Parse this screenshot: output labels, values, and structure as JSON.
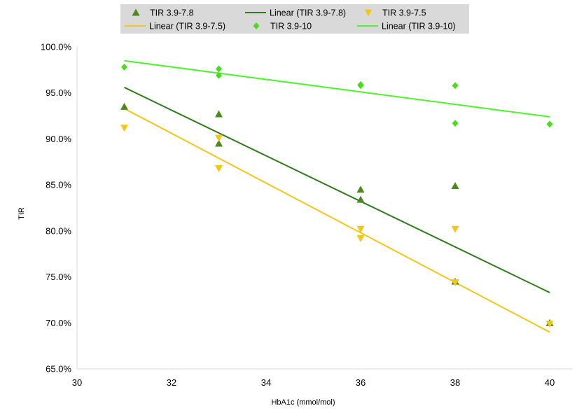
{
  "chart_data": {
    "type": "scatter",
    "title": "",
    "xlabel": "HbA1c (mmol/mol)",
    "ylabel": "TIR",
    "xlim": [
      30,
      40
    ],
    "ylim": [
      65,
      100
    ],
    "x_ticks": [
      30,
      32,
      34,
      36,
      38,
      40
    ],
    "y_ticks": [
      65,
      70,
      75,
      80,
      85,
      90,
      95,
      100
    ],
    "y_tick_labels": [
      "65.0%",
      "70.0%",
      "75.0%",
      "80.0%",
      "85.0%",
      "90.0%",
      "95.0%",
      "100.0%"
    ],
    "grid": false,
    "legend_position": "top",
    "series": [
      {
        "name": "TIR 3.9-7.8",
        "marker": "triangle-up",
        "color": "#4a8a1e",
        "points": [
          [
            31,
            93.5
          ],
          [
            33,
            92.7
          ],
          [
            33,
            89.5
          ],
          [
            36,
            84.5
          ],
          [
            36,
            83.4
          ],
          [
            38,
            84.9
          ],
          [
            38,
            74.5
          ],
          [
            40,
            70.0
          ]
        ]
      },
      {
        "name": "TIR 3.9-7.5",
        "marker": "triangle-down",
        "color": "#f5c518",
        "points": [
          [
            31,
            91.2
          ],
          [
            33,
            90.1
          ],
          [
            33,
            86.8
          ],
          [
            36,
            80.2
          ],
          [
            36,
            79.2
          ],
          [
            38,
            80.2
          ],
          [
            38,
            74.4
          ],
          [
            40,
            69.9
          ]
        ]
      },
      {
        "name": "TIR 3.9-10",
        "marker": "diamond",
        "color": "#4cdb1e",
        "points": [
          [
            31,
            97.8
          ],
          [
            33,
            97.6
          ],
          [
            33,
            96.9
          ],
          [
            36,
            95.9
          ],
          [
            36,
            95.8
          ],
          [
            38,
            95.8
          ],
          [
            38,
            91.7
          ],
          [
            40,
            91.6
          ]
        ]
      }
    ],
    "trendlines": [
      {
        "name": "Linear (TIR 3.9-7.8)",
        "color": "#2e7d1a",
        "from": [
          31,
          95.6
        ],
        "to": [
          40,
          73.3
        ]
      },
      {
        "name": "Linear (TIR 3.9-7.5)",
        "color": "#f5c518",
        "from": [
          31,
          93.3
        ],
        "to": [
          40,
          69.0
        ]
      },
      {
        "name": "Linear (TIR 3.9-10)",
        "color": "#4cf52a",
        "from": [
          31,
          98.5
        ],
        "to": [
          40,
          92.4
        ]
      }
    ],
    "legend": [
      {
        "label": "TIR 3.9-7.8",
        "kind": "triangle-up",
        "color": "#4a8a1e"
      },
      {
        "label": "Linear (TIR 3.9-7.8)",
        "kind": "line",
        "color": "#2e7d1a"
      },
      {
        "label": "TIR 3.9-7.5",
        "kind": "triangle-down",
        "color": "#f5c518"
      },
      {
        "label": "Linear (TIR 3.9-7.5)",
        "kind": "line",
        "color": "#f5c518"
      },
      {
        "label": "TIR 3.9-10",
        "kind": "diamond",
        "color": "#4cdb1e"
      },
      {
        "label": "Linear (TIR 3.9-10)",
        "kind": "line",
        "color": "#4cf52a"
      }
    ]
  }
}
